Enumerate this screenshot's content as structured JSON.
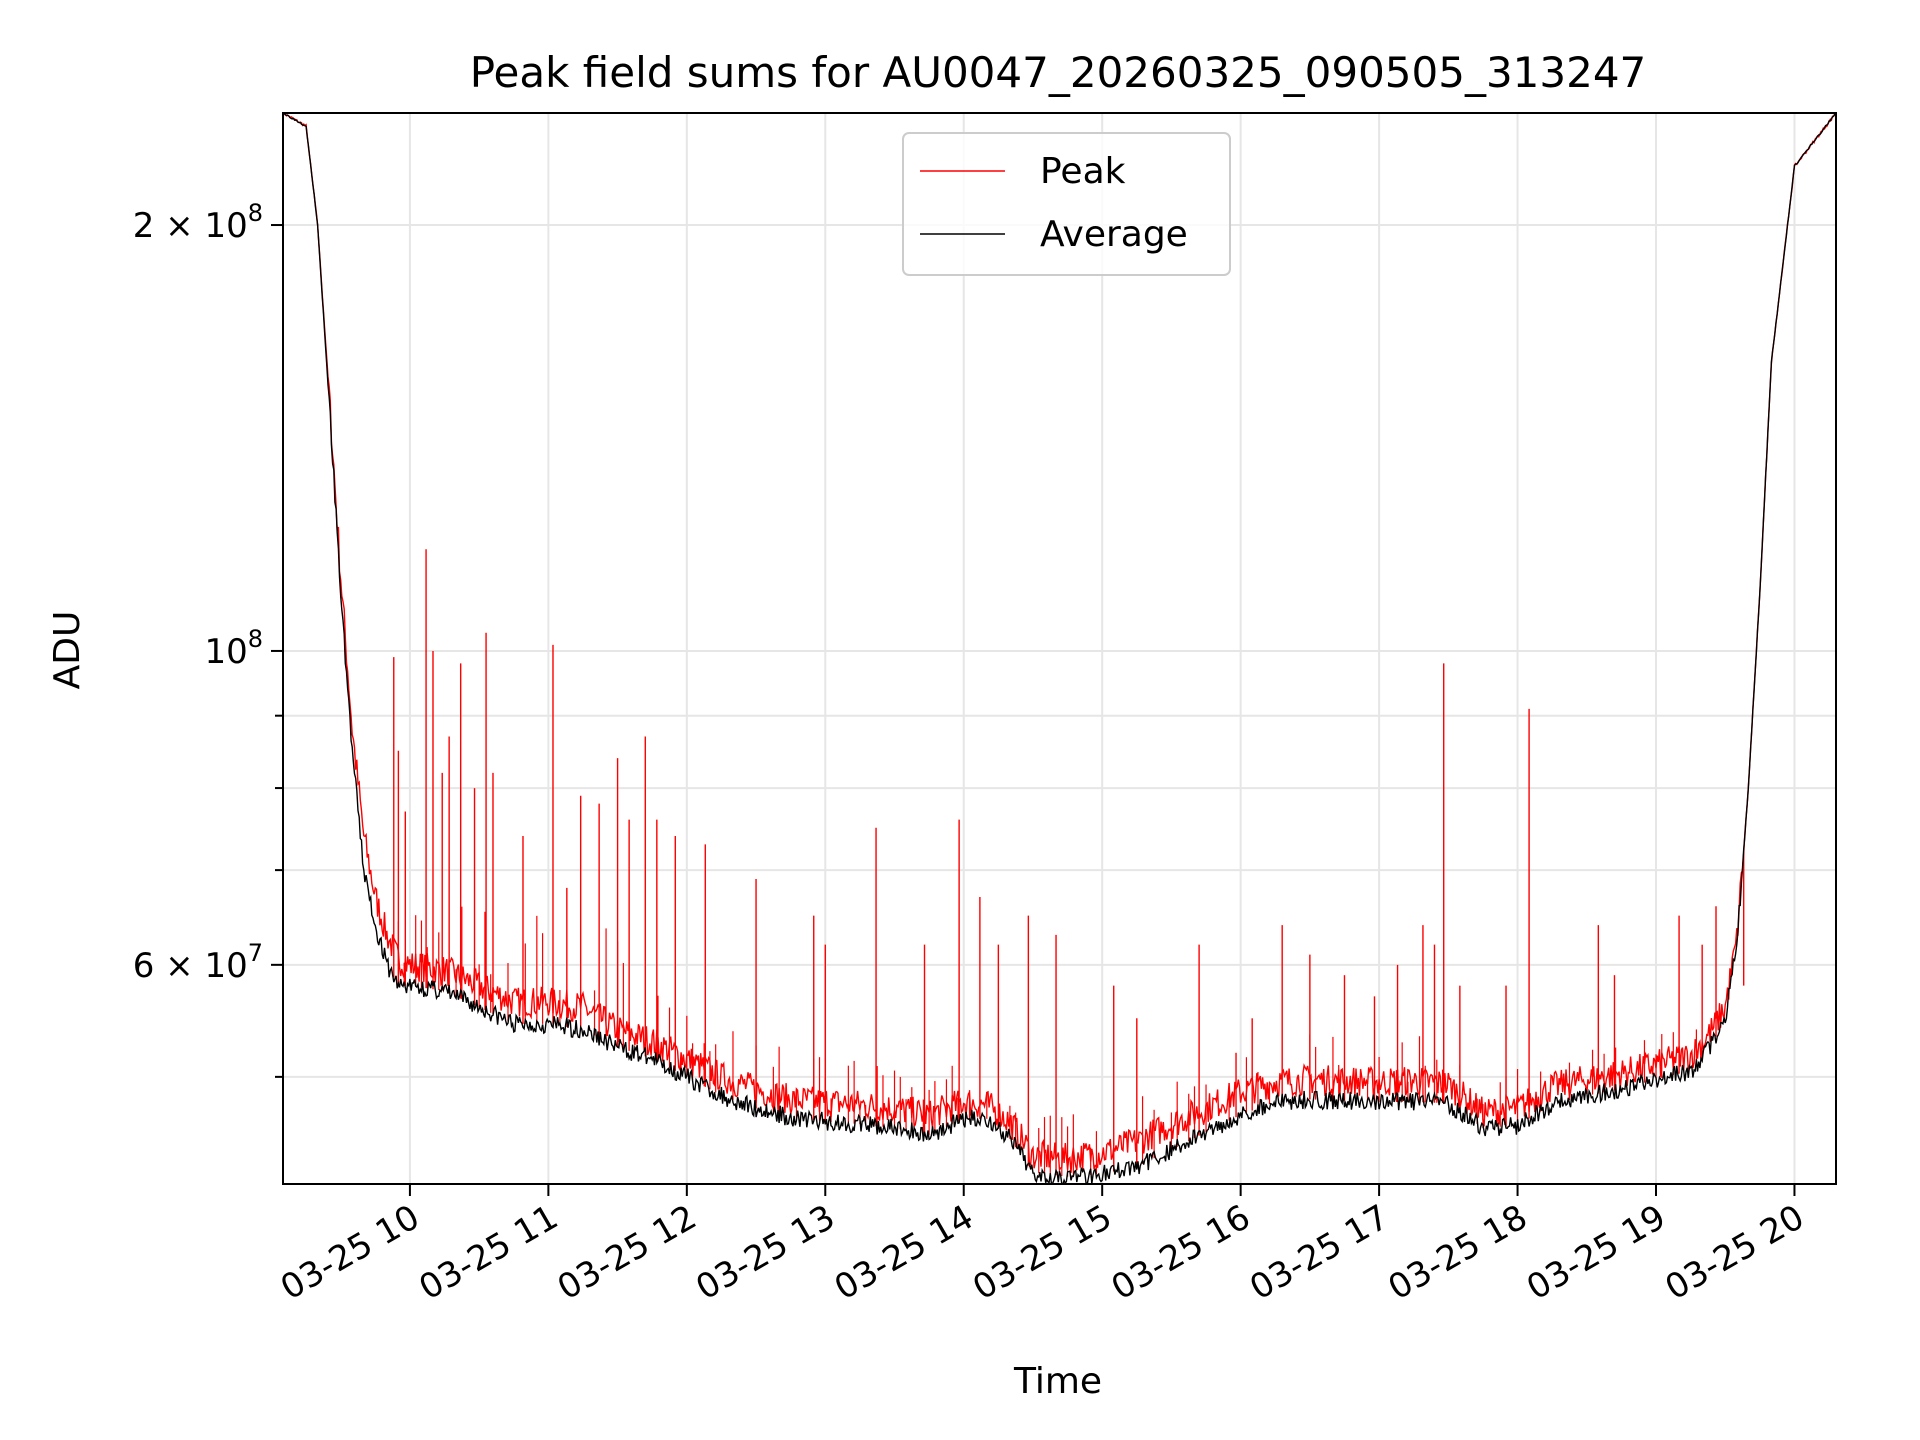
{
  "chart_data": {
    "type": "line",
    "title": "Peak field sums for AU0047_20260325_090505_313247",
    "xlabel": "Time",
    "ylabel": "ADU",
    "y_scale": "log",
    "ylim": [
      42000000,
      240000000
    ],
    "xlim": [
      "03-25 09:05",
      "03-25 20:18"
    ],
    "x_ticks": [
      "03-25 10",
      "03-25 11",
      "03-25 12",
      "03-25 13",
      "03-25 14",
      "03-25 15",
      "03-25 16",
      "03-25 17",
      "03-25 18",
      "03-25 19",
      "03-25 20"
    ],
    "y_ticks": [
      {
        "value": 200000000,
        "base": "2 × 10",
        "exp": "8"
      },
      {
        "value": 100000000,
        "base": "10",
        "exp": "8"
      },
      {
        "value": 60000000,
        "base": "6 × 10",
        "exp": "7"
      }
    ],
    "y_minor_ticks": [
      50000000,
      70000000,
      80000000,
      90000000
    ],
    "grid": true,
    "legend_position": "top-center",
    "x": [
      "09:05",
      "09:15",
      "09:20",
      "09:25",
      "09:30",
      "09:35",
      "09:40",
      "09:45",
      "09:50",
      "09:55",
      "10:00",
      "10:15",
      "10:30",
      "10:45",
      "11:00",
      "11:15",
      "11:30",
      "11:45",
      "12:00",
      "12:15",
      "12:30",
      "12:45",
      "13:00",
      "13:15",
      "13:30",
      "13:45",
      "14:00",
      "14:10",
      "14:20",
      "14:30",
      "14:45",
      "15:00",
      "15:15",
      "15:30",
      "15:45",
      "16:00",
      "16:15",
      "16:30",
      "16:45",
      "17:00",
      "17:15",
      "17:30",
      "17:45",
      "18:00",
      "18:15",
      "18:30",
      "18:45",
      "19:00",
      "19:15",
      "19:20",
      "19:25",
      "19:30",
      "19:35",
      "19:40",
      "19:45",
      "19:50",
      "20:00",
      "20:18"
    ],
    "series": [
      {
        "name": "Average",
        "color": "#000000",
        "values": [
          240000000,
          235000000,
          200000000,
          150000000,
          110000000,
          85000000,
          70000000,
          64000000,
          60000000,
          58000000,
          58000000,
          57500000,
          56000000,
          54500000,
          54500000,
          54000000,
          52500000,
          51500000,
          50000000,
          48500000,
          47500000,
          46800000,
          46500000,
          46300000,
          46000000,
          45500000,
          46700000,
          46700000,
          45200000,
          42800000,
          42500000,
          42700000,
          43200000,
          44400000,
          45700000,
          47000000,
          48000000,
          48200000,
          48100000,
          48000000,
          48000000,
          47900000,
          46000000,
          46200000,
          47800000,
          48500000,
          49000000,
          49800000,
          50500000,
          51500000,
          53000000,
          55000000,
          62000000,
          80000000,
          110000000,
          160000000,
          220000000,
          240000000
        ]
      },
      {
        "name": "Peak",
        "color": "#ff0000",
        "values": [
          240000000,
          235000000,
          200000000,
          152000000,
          113000000,
          88000000,
          74000000,
          67000000,
          63000000,
          60500000,
          60000000,
          59500000,
          58000000,
          56500000,
          56500000,
          56000000,
          54000000,
          53000000,
          51500000,
          50000000,
          49000000,
          48200000,
          48000000,
          47800000,
          47500000,
          47000000,
          48000000,
          47800000,
          46500000,
          44000000,
          43800000,
          44200000,
          45000000,
          46300000,
          47500000,
          48800000,
          49600000,
          49800000,
          49700000,
          49600000,
          49700000,
          49400000,
          47200000,
          47500000,
          49200000,
          49800000,
          50300000,
          51000000,
          51800000,
          52800000,
          54200000,
          56000000,
          62500000,
          80000000,
          110000000,
          160000000,
          220000000,
          240000000
        ],
        "spikes": [
          {
            "x": "09:53",
            "y": 99000000
          },
          {
            "x": "09:55",
            "y": 85000000
          },
          {
            "x": "09:58",
            "y": 77000000
          },
          {
            "x": "10:07",
            "y": 118000000
          },
          {
            "x": "10:10",
            "y": 100000000
          },
          {
            "x": "10:14",
            "y": 82000000
          },
          {
            "x": "10:17",
            "y": 87000000
          },
          {
            "x": "10:22",
            "y": 98000000
          },
          {
            "x": "10:28",
            "y": 80000000
          },
          {
            "x": "10:33",
            "y": 103000000
          },
          {
            "x": "10:36",
            "y": 82000000
          },
          {
            "x": "10:49",
            "y": 74000000
          },
          {
            "x": "11:02",
            "y": 101000000
          },
          {
            "x": "11:08",
            "y": 68000000
          },
          {
            "x": "11:14",
            "y": 79000000
          },
          {
            "x": "11:22",
            "y": 78000000
          },
          {
            "x": "11:30",
            "y": 84000000
          },
          {
            "x": "11:35",
            "y": 76000000
          },
          {
            "x": "11:42",
            "y": 87000000
          },
          {
            "x": "11:47",
            "y": 76000000
          },
          {
            "x": "11:55",
            "y": 74000000
          },
          {
            "x": "12:08",
            "y": 73000000
          },
          {
            "x": "12:30",
            "y": 69000000
          },
          {
            "x": "12:55",
            "y": 65000000
          },
          {
            "x": "13:00",
            "y": 62000000
          },
          {
            "x": "13:22",
            "y": 75000000
          },
          {
            "x": "13:43",
            "y": 62000000
          },
          {
            "x": "13:58",
            "y": 76000000
          },
          {
            "x": "14:07",
            "y": 67000000
          },
          {
            "x": "14:15",
            "y": 62000000
          },
          {
            "x": "14:28",
            "y": 65000000
          },
          {
            "x": "14:40",
            "y": 63000000
          },
          {
            "x": "15:05",
            "y": 58000000
          },
          {
            "x": "15:15",
            "y": 55000000
          },
          {
            "x": "15:42",
            "y": 62000000
          },
          {
            "x": "15:58",
            "y": 52000000
          },
          {
            "x": "16:05",
            "y": 55000000
          },
          {
            "x": "16:18",
            "y": 64000000
          },
          {
            "x": "16:30",
            "y": 61000000
          },
          {
            "x": "16:45",
            "y": 59000000
          },
          {
            "x": "16:58",
            "y": 57000000
          },
          {
            "x": "17:08",
            "y": 60000000
          },
          {
            "x": "17:19",
            "y": 64000000
          },
          {
            "x": "17:24",
            "y": 62000000
          },
          {
            "x": "17:28",
            "y": 98000000
          },
          {
            "x": "17:35",
            "y": 58000000
          },
          {
            "x": "17:55",
            "y": 58000000
          },
          {
            "x": "18:05",
            "y": 91000000
          },
          {
            "x": "18:35",
            "y": 64000000
          },
          {
            "x": "18:42",
            "y": 59000000
          },
          {
            "x": "19:10",
            "y": 65000000
          },
          {
            "x": "19:20",
            "y": 62000000
          },
          {
            "x": "19:26",
            "y": 66000000
          },
          {
            "x": "19:38",
            "y": 58000000
          }
        ]
      }
    ],
    "legend": [
      {
        "label": "Peak",
        "color": "#ff0000"
      },
      {
        "label": "Average",
        "color": "#000000"
      }
    ]
  }
}
